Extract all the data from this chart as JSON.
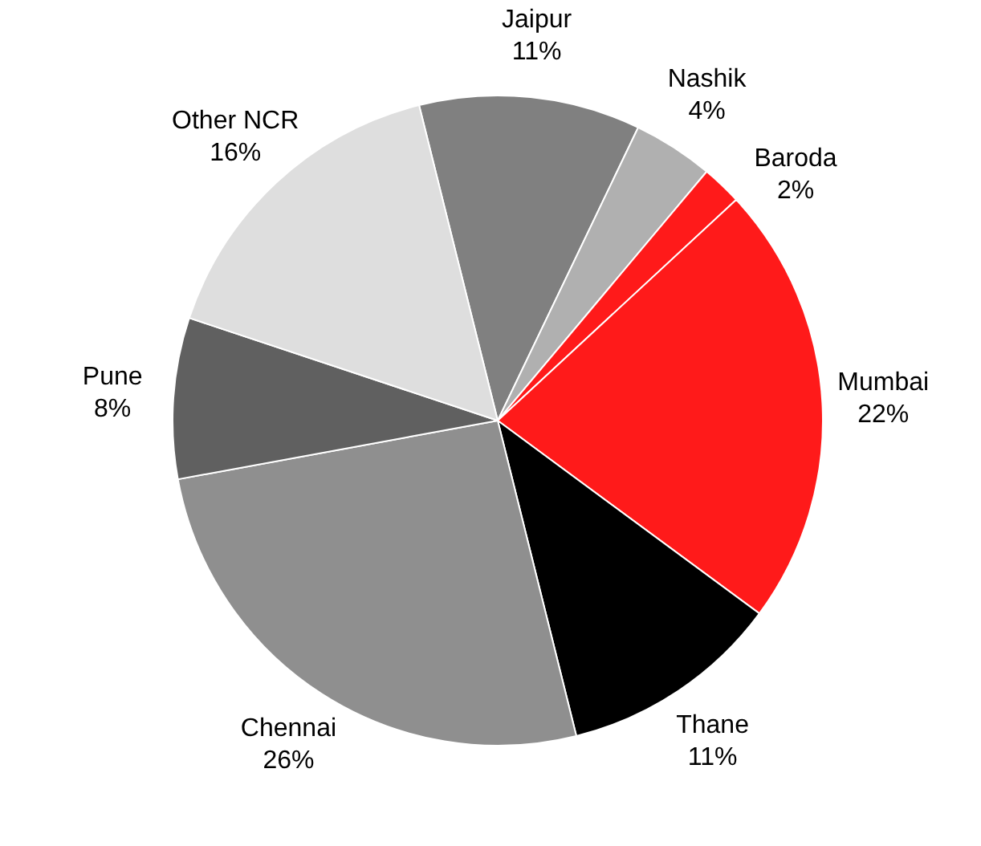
{
  "chart_data": {
    "type": "pie",
    "categories": [
      "Jaipur",
      "Nashik",
      "Baroda",
      "Mumbai",
      "Thane",
      "Chennai",
      "Pune",
      "Other NCR"
    ],
    "values": [
      11,
      4,
      2,
      22,
      11,
      26,
      8,
      16
    ],
    "colors": [
      "#808080",
      "#b0b0b0",
      "#ff1a1a",
      "#ff1a1a",
      "#000000",
      "#8f8f8f",
      "#606060",
      "#dedede"
    ],
    "value_labels": [
      "11%",
      "4%",
      "2%",
      "22%",
      "11%",
      "26%",
      "8%",
      "16%"
    ],
    "legend": false
  }
}
